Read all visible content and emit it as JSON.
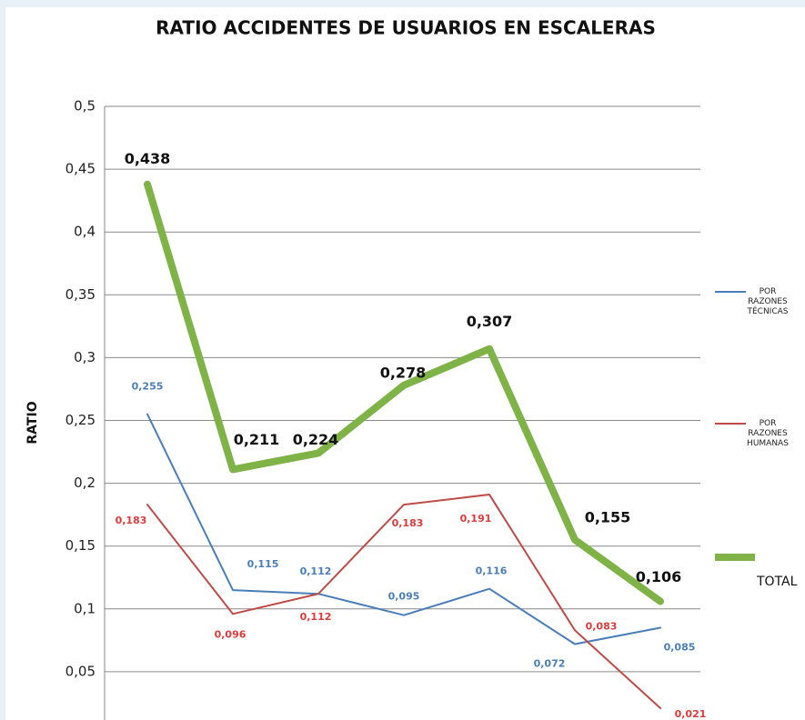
{
  "chart_data": {
    "type": "line",
    "title": "RATIO ACCIDENTES DE USUARIOS EN ESCALERAS",
    "y_label": "RATIO",
    "categories": [
      null,
      null,
      null,
      null,
      null,
      null,
      null
    ],
    "ylim": [
      0,
      0.5
    ],
    "yticks": [
      {
        "value": 0.05,
        "label": "0,05"
      },
      {
        "value": 0.1,
        "label": "0,1"
      },
      {
        "value": 0.15,
        "label": "0,15"
      },
      {
        "value": 0.2,
        "label": "0,2"
      },
      {
        "value": 0.25,
        "label": "0,25"
      },
      {
        "value": 0.3,
        "label": "0,3"
      },
      {
        "value": 0.35,
        "label": "0,35"
      },
      {
        "value": 0.4,
        "label": "0,4"
      },
      {
        "value": 0.45,
        "label": "0,45"
      },
      {
        "value": 0.5,
        "label": "0,5"
      }
    ],
    "grid": true,
    "legend": "right",
    "series": [
      {
        "name": "POR RAZONES TÉCNICAS",
        "color": "#4a7ebb",
        "values": [
          0.255,
          0.115,
          0.112,
          0.095,
          0.116,
          0.072,
          0.085
        ],
        "value_labels": [
          "0,255",
          "0,115",
          "0,112",
          "0,095",
          "0,116",
          "0,072",
          "0,085"
        ]
      },
      {
        "name": "POR RAZONES HUMANAS",
        "color": "#be4b48",
        "values": [
          0.183,
          0.096,
          0.112,
          0.183,
          0.191,
          0.083,
          0.021
        ],
        "value_labels": [
          "0,183",
          "0,096",
          "0,112",
          "0,183",
          "0,191",
          "0,083",
          "0,021"
        ]
      },
      {
        "name": "TOTAL",
        "color": "#7fb347",
        "values": [
          0.438,
          0.211,
          0.224,
          0.278,
          0.307,
          0.155,
          0.106
        ],
        "value_labels": [
          "0,438",
          "0,211",
          "0,224",
          "0,278",
          "0,307",
          "0,155",
          "0,106"
        ]
      }
    ]
  }
}
